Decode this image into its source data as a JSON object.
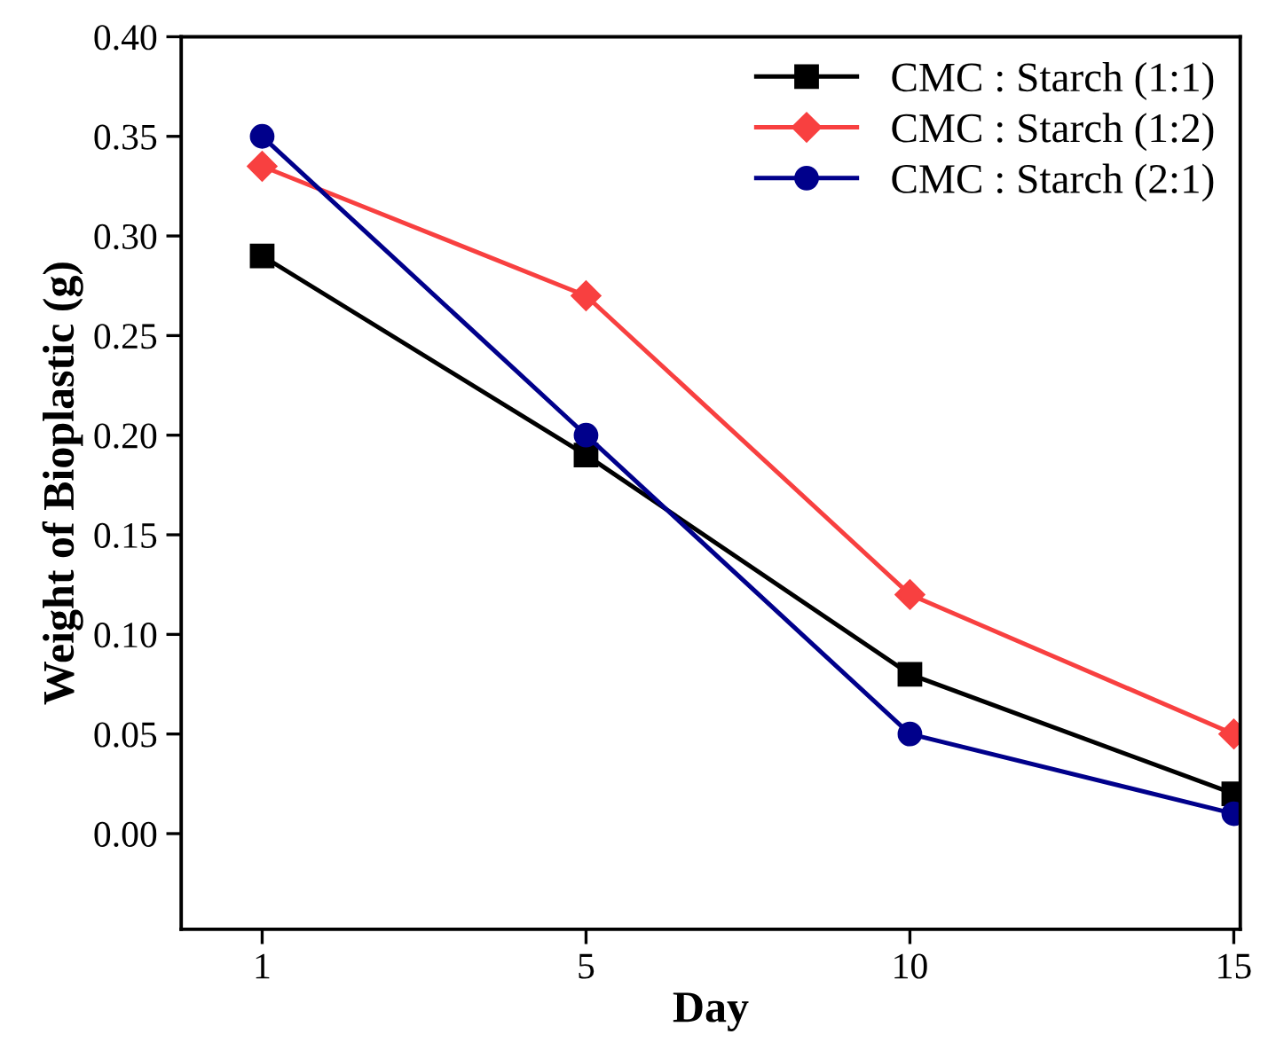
{
  "chart_data": {
    "type": "line",
    "xlabel": "Day",
    "ylabel": "Weight of Bioplastic (g)",
    "categories": [
      "1",
      "5",
      "10",
      "15"
    ],
    "series": [
      {
        "name": "CMC : Starch (1:1)",
        "color": "#000000",
        "marker": "square",
        "values": [
          0.29,
          0.19,
          0.08,
          0.02
        ]
      },
      {
        "name": "CMC : Starch (1:2)",
        "color": "#f84040",
        "marker": "diamond",
        "values": [
          0.335,
          0.27,
          0.12,
          0.05
        ]
      },
      {
        "name": "CMC : Starch (2:1)",
        "color": "#00008b",
        "marker": "circle",
        "values": [
          0.35,
          0.2,
          0.05,
          0.01
        ]
      }
    ],
    "ylim": [
      -0.048,
      0.4
    ],
    "yticks": [
      {
        "value": 0,
        "label": "0.00"
      },
      {
        "value": 0.05,
        "label": "0.05"
      },
      {
        "value": 0.1,
        "label": "0.10"
      },
      {
        "value": 0.15,
        "label": "0.15"
      },
      {
        "value": 0.2,
        "label": "0.20"
      },
      {
        "value": 0.25,
        "label": "0.25"
      },
      {
        "value": 0.3,
        "label": "0.30"
      },
      {
        "value": 0.35,
        "label": "0.35"
      },
      {
        "value": 0.4,
        "label": "0.40"
      }
    ],
    "legend": "top right",
    "grid": false,
    "line_style": "solid"
  }
}
